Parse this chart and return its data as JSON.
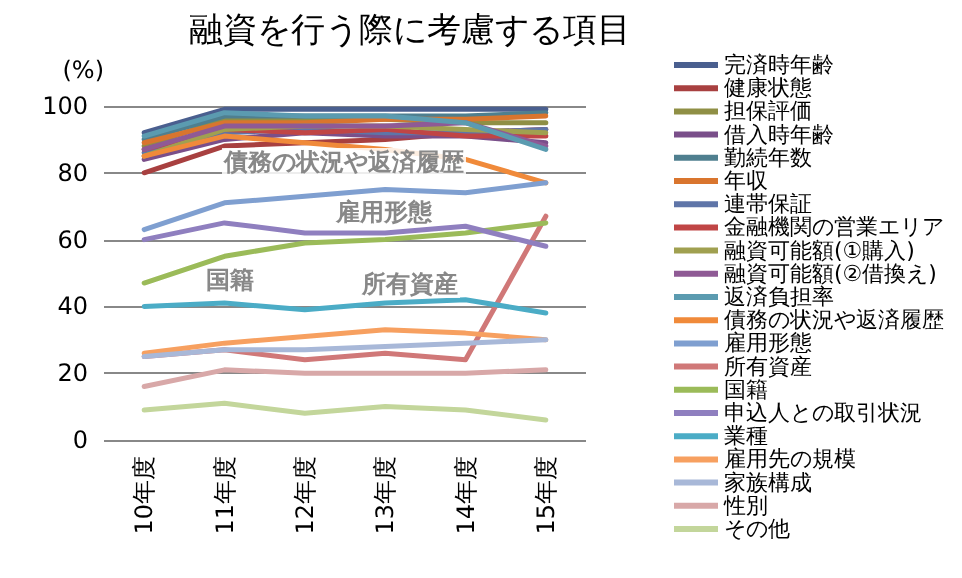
{
  "chart_data": {
    "type": "line",
    "title": "融資を行う際に考慮する項目",
    "ylabel": "(%)",
    "categories": [
      "10年度",
      "11年度",
      "12年度",
      "13年度",
      "14年度",
      "15年度"
    ],
    "ylim": [
      0,
      100
    ],
    "yticks": [
      0,
      20,
      40,
      60,
      80,
      100
    ],
    "grid": "y",
    "legend": "right",
    "marker": "none",
    "line_style": "solid",
    "annotations": [
      "債務の状況や返済履歴",
      "雇用形態",
      "国籍",
      "所有資産"
    ],
    "series": [
      {
        "name": "完済時年齢",
        "color": "#4a5f8f",
        "values": [
          92,
          99,
          99,
          99,
          99,
          99
        ]
      },
      {
        "name": "健康状態",
        "color": "#a84040",
        "values": [
          80,
          88,
          89,
          90,
          92,
          93
        ]
      },
      {
        "name": "担保評価",
        "color": "#8f8f45",
        "values": [
          88,
          96,
          96,
          96,
          95,
          95
        ]
      },
      {
        "name": "借入時年齢",
        "color": "#7a4f8a",
        "values": [
          84,
          90,
          92,
          91,
          91,
          89
        ]
      },
      {
        "name": "勤続年数",
        "color": "#4f7f8f",
        "values": [
          90,
          97,
          97,
          97,
          97,
          98
        ]
      },
      {
        "name": "年収",
        "color": "#d9752e",
        "values": [
          89,
          95,
          95,
          96,
          96,
          97
        ]
      },
      {
        "name": "連帯保証",
        "color": "#5f75a8",
        "values": [
          86,
          92,
          93,
          92,
          92,
          93
        ]
      },
      {
        "name": "金融機関の営業エリア",
        "color": "#c04545",
        "values": [
          87,
          93,
          92,
          93,
          91,
          91
        ]
      },
      {
        "name": "融資可能額(①購入)",
        "color": "#a0a050",
        "values": [
          85,
          93,
          94,
          94,
          93,
          92
        ]
      },
      {
        "name": "融資可能額(②借換え)",
        "color": "#8f5a95",
        "values": [
          87,
          94,
          94,
          94,
          95,
          88
        ]
      },
      {
        "name": "返済負担率",
        "color": "#5b9bb0",
        "values": [
          91,
          98,
          97,
          97,
          95,
          87
        ]
      },
      {
        "name": "債務の状況や返済履歴",
        "color": "#f08a3a",
        "values": [
          85,
          91,
          89,
          87,
          84,
          77
        ]
      },
      {
        "name": "雇用形態",
        "color": "#7f9fd0",
        "values": [
          63,
          71,
          73,
          75,
          74,
          77
        ]
      },
      {
        "name": "所有資産",
        "color": "#d07878",
        "values": [
          25,
          27,
          24,
          26,
          24,
          67
        ]
      },
      {
        "name": "国籍",
        "color": "#9bbb59",
        "values": [
          47,
          55,
          59,
          60,
          62,
          65
        ]
      },
      {
        "name": "申込人との取引状況",
        "color": "#8f7fbf",
        "values": [
          60,
          65,
          62,
          62,
          64,
          58
        ]
      },
      {
        "name": "業種",
        "color": "#4bacc6",
        "values": [
          40,
          41,
          39,
          41,
          42,
          38
        ]
      },
      {
        "name": "雇用先の規模",
        "color": "#f7a060",
        "values": [
          26,
          29,
          31,
          33,
          32,
          30
        ]
      },
      {
        "name": "家族構成",
        "color": "#a8b8d8",
        "values": [
          25,
          27,
          27,
          28,
          29,
          30
        ]
      },
      {
        "name": "性別",
        "color": "#d8a8a8",
        "values": [
          16,
          21,
          20,
          20,
          20,
          21
        ]
      },
      {
        "name": "その他",
        "color": "#c3d69b",
        "values": [
          9,
          11,
          8,
          10,
          9,
          6
        ]
      }
    ]
  }
}
